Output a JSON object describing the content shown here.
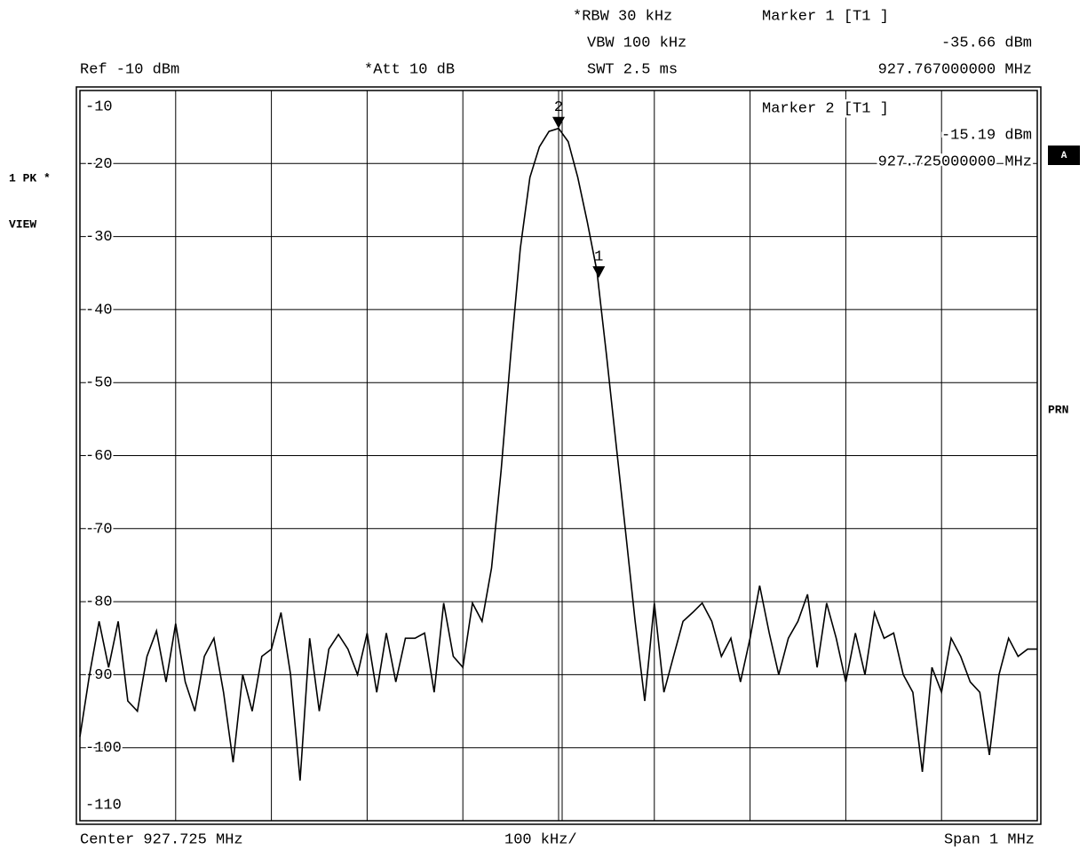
{
  "chart_data": {
    "type": "line",
    "header": {
      "rbw": "*RBW 30 kHz",
      "vbw": "VBW 100 kHz",
      "swt": "SWT 2.5 ms",
      "ref": "Ref -10 dBm",
      "att": "*Att 10 dB"
    },
    "side": {
      "trace": "1 PK *",
      "view": "VIEW",
      "a": "A",
      "prn": "PRN"
    },
    "footer": {
      "center": "Center 927.725 MHz",
      "div": "100 kHz/",
      "span": "Span 1 MHz"
    },
    "markers": [
      {
        "label": "1",
        "title": "Marker 1 [T1 ]",
        "x": 927.767,
        "y": -35.66,
        "level": "-35.66 dBm",
        "freq": "927.767000000 MHz"
      },
      {
        "label": "2",
        "title": "Marker 2 [T1 ]",
        "x": 927.725,
        "y": -15.19,
        "level": "-15.19 dBm",
        "freq": "927.725000000 MHz"
      }
    ],
    "xlim": [
      927.225,
      928.225
    ],
    "ylim": [
      -110,
      -10
    ],
    "yticks": [
      -10,
      -20,
      -30,
      -40,
      -50,
      -60,
      -70,
      -80,
      -90,
      -100,
      -110
    ],
    "grid": true,
    "series": [
      {
        "color": "#000000",
        "x": [
          927.225,
          927.235,
          927.245,
          927.255,
          927.265,
          927.275,
          927.285,
          927.295,
          927.305,
          927.315,
          927.325,
          927.335,
          927.345,
          927.355,
          927.365,
          927.375,
          927.385,
          927.395,
          927.405,
          927.415,
          927.425,
          927.435,
          927.445,
          927.455,
          927.465,
          927.475,
          927.485,
          927.495,
          927.505,
          927.515,
          927.525,
          927.535,
          927.545,
          927.555,
          927.565,
          927.575,
          927.585,
          927.595,
          927.605,
          927.615,
          927.625,
          927.635,
          927.645,
          927.655,
          927.665,
          927.675,
          927.685,
          927.695,
          927.705,
          927.715,
          927.725,
          927.735,
          927.745,
          927.755,
          927.765,
          927.775,
          927.785,
          927.795,
          927.805,
          927.815,
          927.825,
          927.835,
          927.845,
          927.855,
          927.865,
          927.875,
          927.885,
          927.895,
          927.905,
          927.915,
          927.925,
          927.935,
          927.945,
          927.955,
          927.965,
          927.975,
          927.985,
          927.995,
          928.005,
          928.015,
          928.025,
          928.035,
          928.045,
          928.055,
          928.065,
          928.075,
          928.085,
          928.095,
          928.105,
          928.115,
          928.125,
          928.135,
          928.145,
          928.155,
          928.165,
          928.175,
          928.185,
          928.195,
          928.205,
          928.215,
          928.225
        ],
        "values": [
          -98.5,
          -90,
          -82.7,
          -89,
          -82.7,
          -93.6,
          -95,
          -87.5,
          -84,
          -91,
          -83,
          -91,
          -95,
          -87.5,
          -85,
          -92.4,
          -102,
          -90,
          -95,
          -87.5,
          -86.5,
          -81.5,
          -90,
          -104.5,
          -85,
          -95,
          -86.5,
          -84.5,
          -86.5,
          -90,
          -84.3,
          -92.4,
          -84.3,
          -91,
          -85,
          -85,
          -84.3,
          -92.4,
          -80.2,
          -87.5,
          -89,
          -80.2,
          -82.7,
          -75.4,
          -62,
          -46.2,
          -31.6,
          -21.9,
          -17.7,
          -15.6,
          -15.19,
          -17,
          -21.9,
          -28,
          -34.7,
          -46.2,
          -58.4,
          -70.5,
          -82.7,
          -93.6,
          -80.2,
          -92.4,
          -87.5,
          -82.7,
          -81.5,
          -80.2,
          -82.7,
          -87.5,
          -85,
          -91,
          -85,
          -77.8,
          -84.3,
          -90,
          -85,
          -82.7,
          -79,
          -89,
          -80.2,
          -85,
          -91,
          -84.3,
          -90,
          -81.5,
          -85,
          -84.3,
          -90,
          -92.4,
          -103.3,
          -89,
          -92.4,
          -85,
          -87.5,
          -91,
          -92.4,
          -101,
          -90,
          -85,
          -87.5,
          -86.5,
          -86.5
        ]
      }
    ]
  }
}
